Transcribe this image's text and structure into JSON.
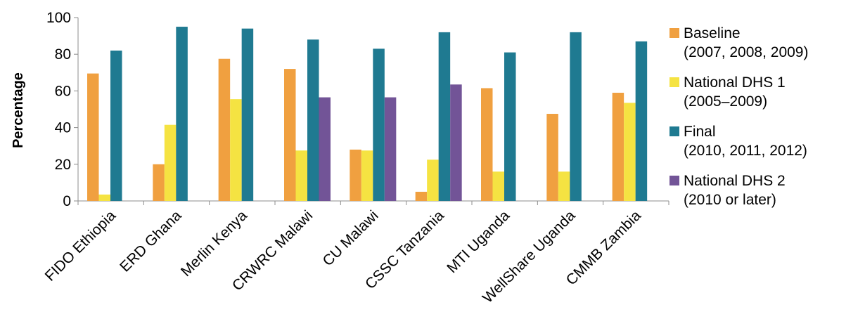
{
  "chart_data": {
    "type": "bar",
    "ylabel": "Percentage",
    "xlabel": "",
    "ylim": [
      0,
      100
    ],
    "yticks": [
      0,
      20,
      40,
      60,
      80,
      100
    ],
    "grid": false,
    "legend_position": "right",
    "categories": [
      "FIDO Ethiopia",
      "ERD Ghana",
      "Merlin Kenya",
      "CRWRC Malawi",
      "CU Malawi",
      "CSSC Tanzania",
      "MTI Uganda",
      "WellShare Uganda",
      "CMMB Zambia"
    ],
    "series": [
      {
        "name": "Baseline",
        "name_line2": "(2007, 2008, 2009)",
        "color": "#F0A040",
        "values": [
          69.5,
          20,
          77.5,
          72,
          28,
          5,
          61.5,
          47.5,
          59
        ]
      },
      {
        "name": "National DHS 1",
        "name_line2": "(2005–2009)",
        "color": "#F5E342",
        "values": [
          3.5,
          41.5,
          55.5,
          27.5,
          27.5,
          22.5,
          16,
          16,
          53.5
        ]
      },
      {
        "name": "Final",
        "name_line2": "(2010, 2011, 2012)",
        "color": "#1F7A91",
        "values": [
          82,
          95,
          94,
          88,
          83,
          92,
          81,
          92,
          87
        ]
      },
      {
        "name": "National DHS 2",
        "name_line2": "(2010 or later)",
        "color": "#725497",
        "values": [
          null,
          null,
          null,
          56.5,
          56.5,
          63.5,
          null,
          null,
          null
        ]
      }
    ]
  }
}
